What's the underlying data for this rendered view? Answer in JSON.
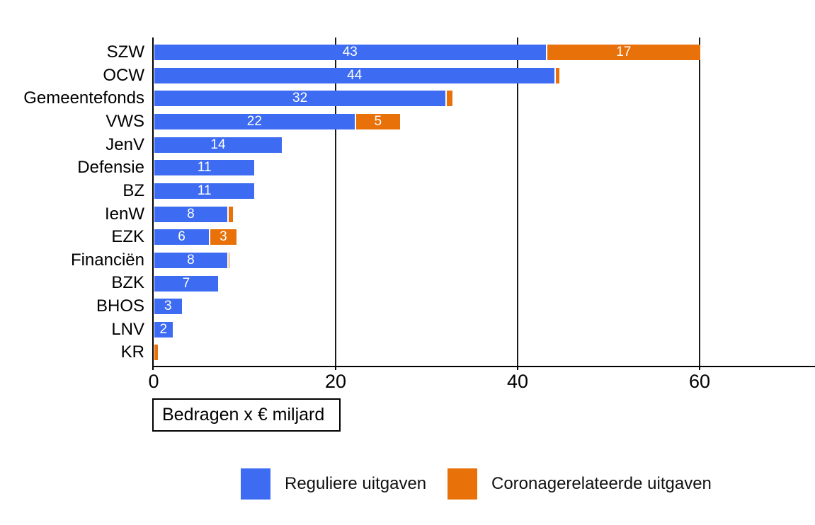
{
  "chart_data": {
    "type": "bar",
    "orientation": "horizontal",
    "stacked": true,
    "title": "",
    "axis_note": "Bedragen x € miljard",
    "categories": [
      "SZW",
      "OCW",
      "Gemeentefonds",
      "VWS",
      "JenV",
      "Defensie",
      "BZ",
      "IenW",
      "EZK",
      "Financiën",
      "BZK",
      "BHOS",
      "LNV",
      "KR"
    ],
    "series": [
      {
        "name": "Reguliere uitgaven",
        "color": "#3d6cf2",
        "values": [
          43,
          44,
          32,
          22,
          14,
          11,
          11,
          8,
          6,
          8,
          7,
          3,
          2,
          0
        ],
        "labels": [
          "43",
          "44",
          "32",
          "22",
          "14",
          "11",
          "11",
          "8",
          "6",
          "8",
          "7",
          "3",
          "2",
          ""
        ]
      },
      {
        "name": "Coronagerelateerde uitgaven",
        "color": "#e8710a",
        "values": [
          17,
          0.5,
          0.8,
          5,
          0,
          0,
          0,
          0.6,
          3,
          0.2,
          0,
          0,
          0,
          0.4
        ],
        "labels": [
          "17",
          "",
          "",
          "5",
          "",
          "",
          "",
          "",
          "3",
          "",
          "",
          "",
          "",
          ""
        ]
      }
    ],
    "x_ticks": [
      0,
      20,
      40,
      60
    ],
    "x_tick_labels": [
      "0",
      "20",
      "40",
      "60"
    ],
    "xlim": [
      0,
      72.6
    ],
    "grid": true,
    "legend_position": "bottom",
    "legend": [
      {
        "label": "Reguliere uitgaven",
        "color": "#3d6cf2"
      },
      {
        "label": "Coronagerelateerde uitgaven",
        "color": "#e8710a"
      }
    ],
    "label_text_color": "#ffffff"
  }
}
